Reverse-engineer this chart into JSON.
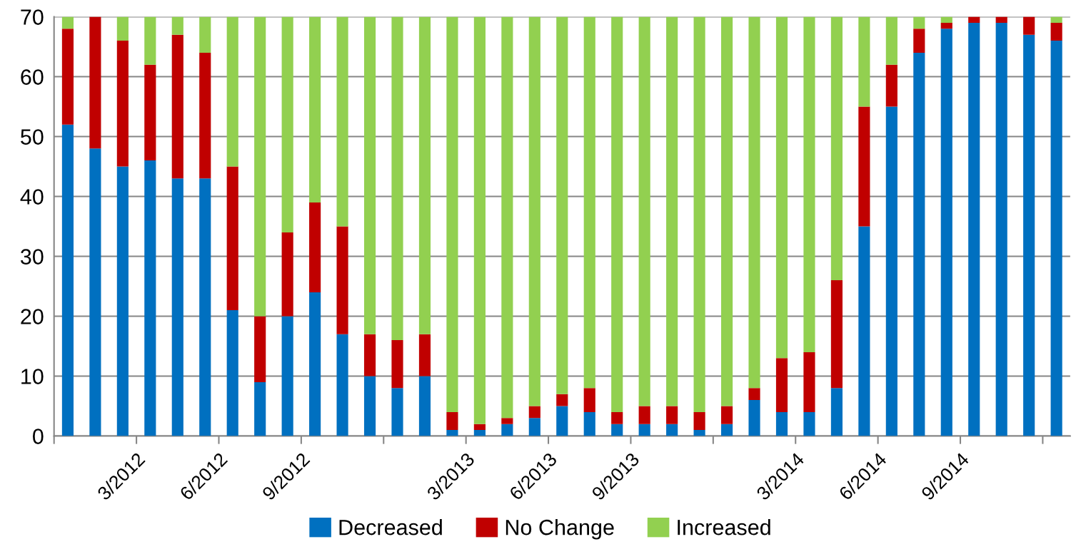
{
  "chart_data": {
    "type": "bar",
    "stacked": true,
    "categories": [
      null,
      null,
      "3/2012",
      null,
      null,
      "6/2012",
      null,
      null,
      "9/2012",
      null,
      null,
      null,
      null,
      null,
      "3/2013",
      null,
      null,
      "6/2013",
      null,
      null,
      "9/2013",
      null,
      null,
      null,
      null,
      null,
      "3/2014",
      null,
      null,
      "6/2014",
      null,
      null,
      "9/2014",
      null,
      null,
      null,
      null
    ],
    "series": [
      {
        "name": "Decreased",
        "color": "#0070c0",
        "values": [
          52,
          48,
          45,
          46,
          43,
          43,
          21,
          9,
          20,
          24,
          17,
          10,
          8,
          10,
          1,
          1,
          2,
          3,
          5,
          4,
          2,
          2,
          2,
          1,
          2,
          6,
          4,
          4,
          8,
          35,
          55,
          64,
          68,
          69,
          69,
          67,
          66
        ]
      },
      {
        "name": "No Change",
        "color": "#c00000",
        "values": [
          16,
          22,
          21,
          16,
          24,
          21,
          24,
          11,
          14,
          15,
          18,
          7,
          8,
          7,
          3,
          1,
          1,
          2,
          2,
          4,
          2,
          3,
          3,
          3,
          3,
          2,
          9,
          10,
          18,
          20,
          7,
          4,
          1,
          1,
          1,
          3,
          3
        ]
      },
      {
        "name": "Increased",
        "color": "#92d050",
        "values": [
          2,
          0,
          4,
          8,
          3,
          6,
          25,
          50,
          36,
          31,
          35,
          53,
          54,
          53,
          66,
          68,
          67,
          65,
          63,
          62,
          66,
          65,
          65,
          66,
          65,
          62,
          57,
          56,
          44,
          15,
          8,
          2,
          1,
          0,
          0,
          0,
          1
        ]
      }
    ],
    "ylim": [
      0,
      70
    ],
    "yticks": [
      0,
      10,
      20,
      30,
      40,
      50,
      60,
      70
    ],
    "grid": "y",
    "legend": "bottom"
  }
}
